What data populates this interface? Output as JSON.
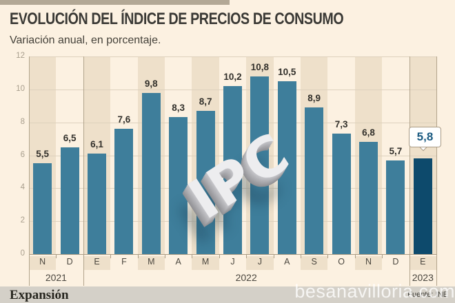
{
  "header": {
    "title": "EVOLUCIÓN DEL ÍNDICE DE PRECIOS DE CONSUMO",
    "subtitle": "Variación anual, en porcentaje."
  },
  "chart_data": {
    "type": "bar",
    "categories": [
      "N",
      "D",
      "E",
      "F",
      "M",
      "A",
      "M",
      "J",
      "J",
      "A",
      "S",
      "O",
      "N",
      "D",
      "E"
    ],
    "values": [
      5.5,
      6.5,
      6.1,
      7.6,
      9.8,
      8.3,
      8.7,
      10.2,
      10.8,
      10.5,
      8.9,
      7.3,
      6.8,
      5.7,
      5.8
    ],
    "value_labels": [
      "5,5",
      "6,5",
      "6,1",
      "7,6",
      "9,8",
      "8,3",
      "8,7",
      "10,2",
      "10,8",
      "10,5",
      "8,9",
      "7,3",
      "6,8",
      "5,7",
      "5,8"
    ],
    "years": [
      {
        "label": "2021",
        "from": 0,
        "to": 2
      },
      {
        "label": "2022",
        "from": 2,
        "to": 14
      },
      {
        "label": "2023",
        "from": 14,
        "to": 15
      }
    ],
    "yticks": [
      0,
      2,
      4,
      6,
      8,
      10,
      12
    ],
    "ylim": [
      0,
      12
    ],
    "grid": true,
    "highlight_index": 14,
    "highlight_label": "5,8",
    "bar_color": "#3e7e9b",
    "highlight_color": "#0d4a6c",
    "stripe_color": "#eee0ca",
    "title": "EVOLUCIÓN DEL ÍNDICE DE PRECIOS DE CONSUMO",
    "xlabel": "",
    "ylabel": ""
  },
  "watermarks": {
    "ipc": "IPC",
    "site": "besanavilloria.com"
  },
  "footer": {
    "brand": "Expansión",
    "source": "Fuente: INE"
  }
}
